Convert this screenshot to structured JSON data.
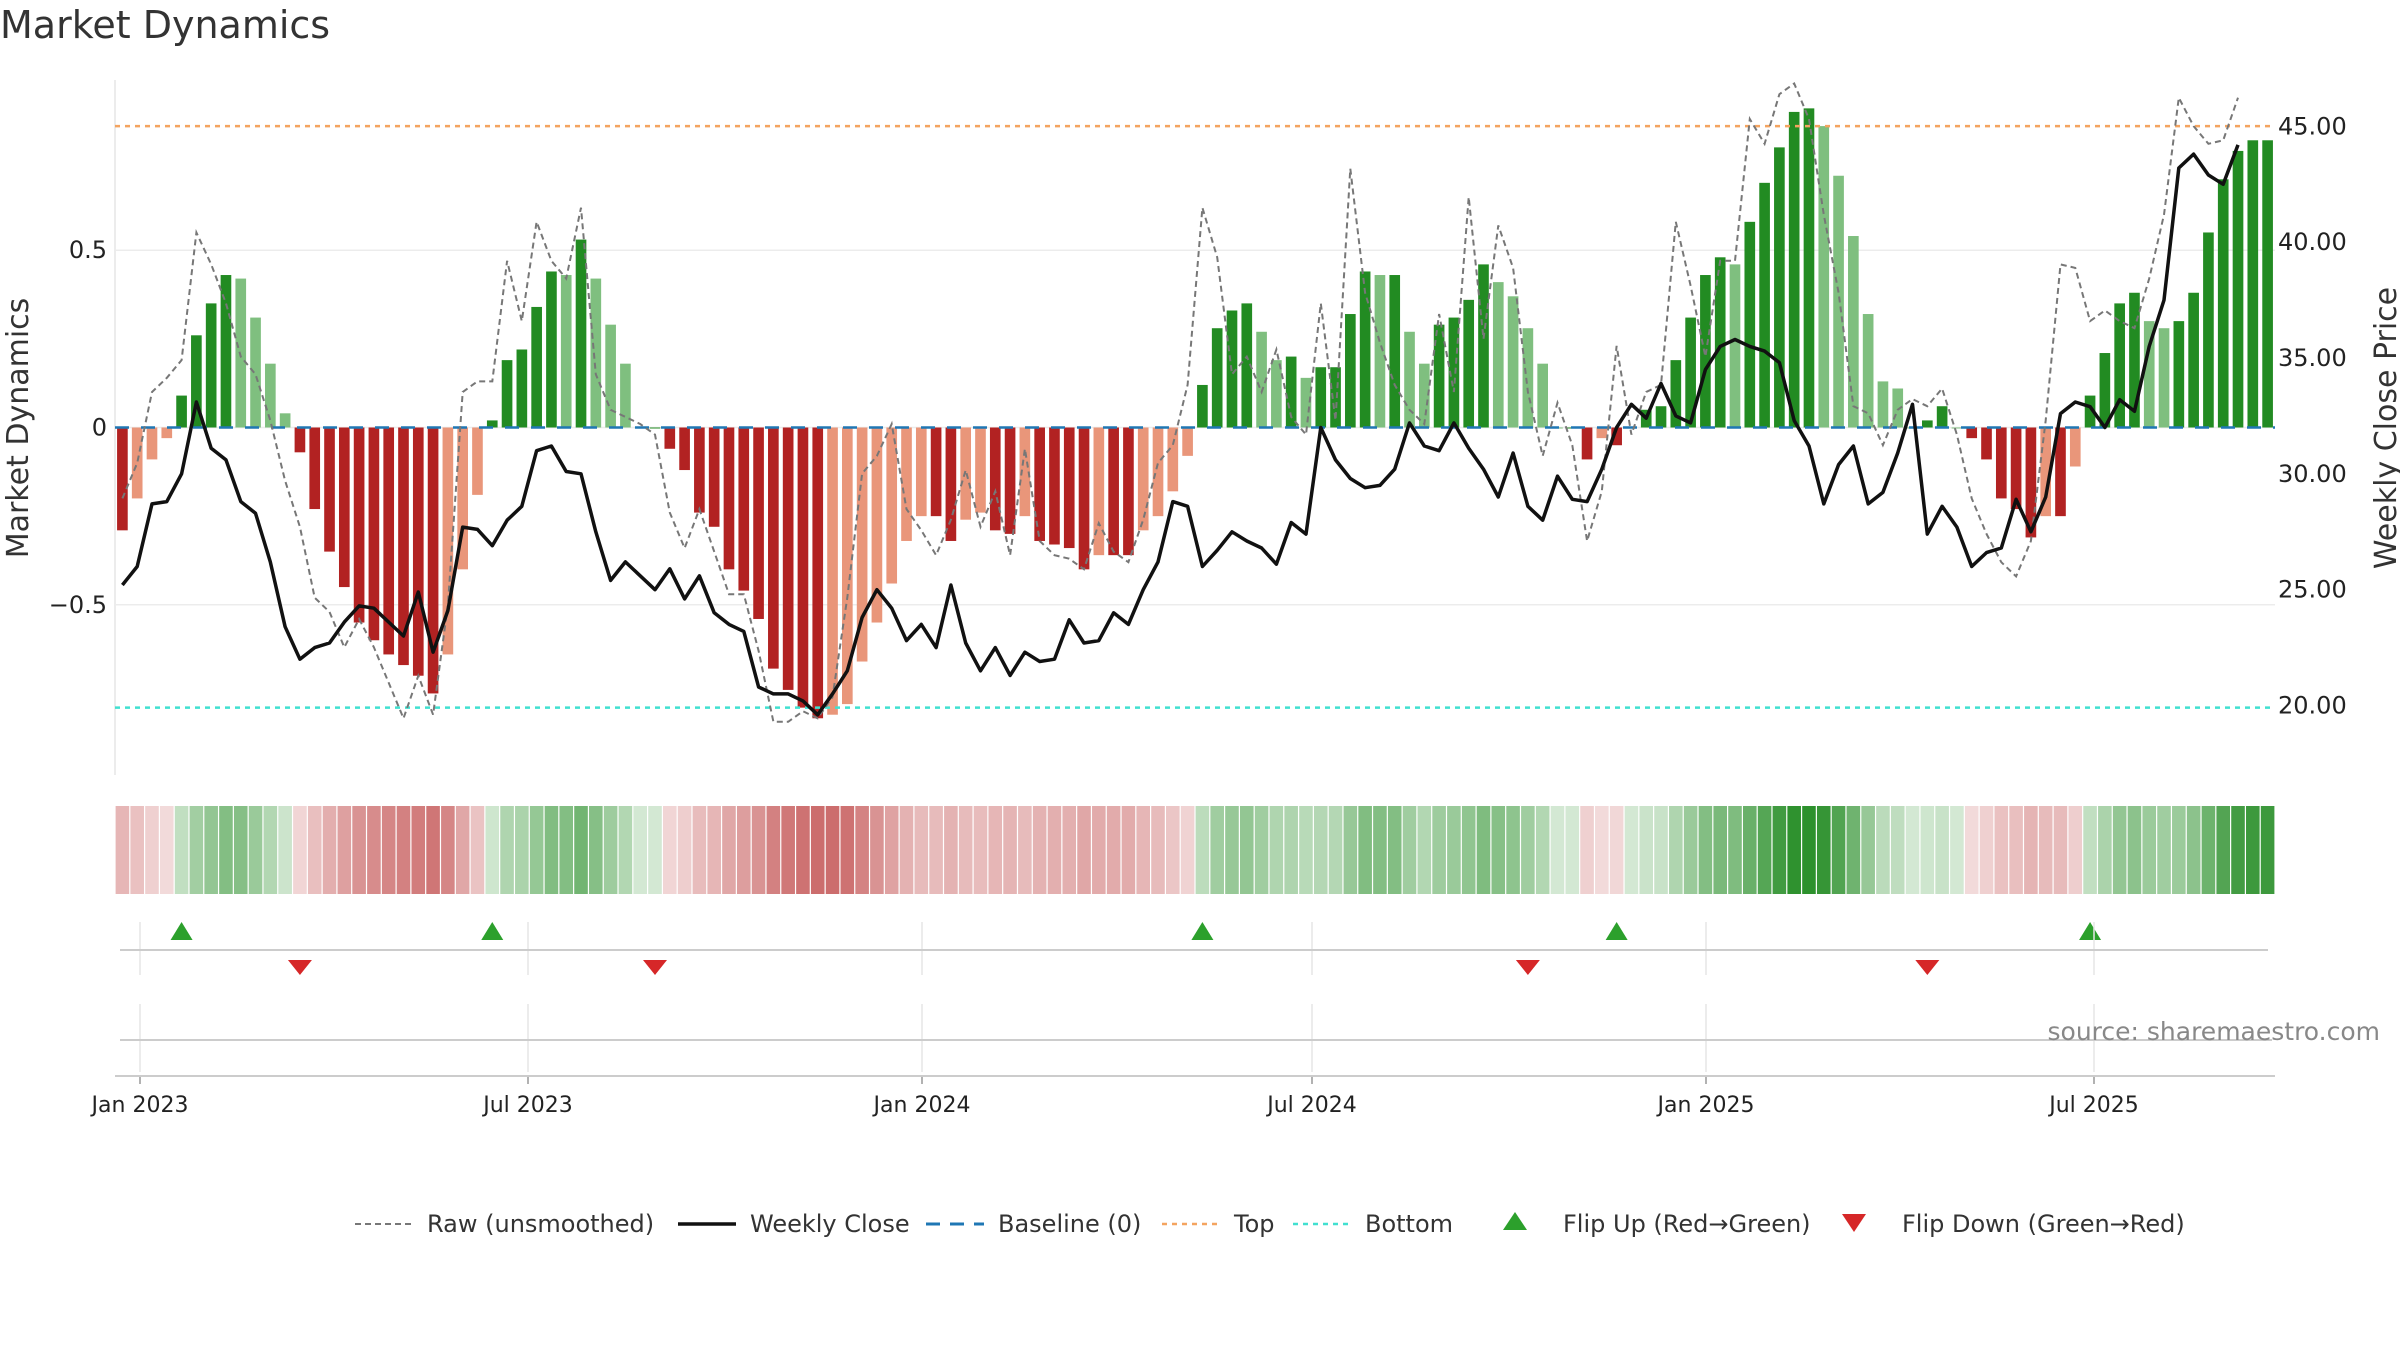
{
  "chart_data": {
    "type": "bar",
    "title": "Market Dynamics",
    "ylabel_left": "Market Dynamics",
    "ylabel_right": "Weekly Close Price",
    "ylim_left": [
      -0.98,
      0.98
    ],
    "ylim_right": [
      17.0,
      47.0
    ],
    "yticks_left": [
      {
        "v": 0.5,
        "label": "0.5"
      },
      {
        "v": 0,
        "label": "0"
      },
      {
        "v": -0.5,
        "label": "−0.5"
      }
    ],
    "yticks_right": [
      {
        "v": 45,
        "label": "45.00"
      },
      {
        "v": 40,
        "label": "40.00"
      },
      {
        "v": 35,
        "label": "35.00"
      },
      {
        "v": 30,
        "label": "30.00"
      },
      {
        "v": 25,
        "label": "25.00"
      },
      {
        "v": 20,
        "label": "20.00"
      }
    ],
    "xticks": [
      "Jan 2023",
      "Jul 2023",
      "Jan 2024",
      "Jul 2024",
      "Jan 2025",
      "Jul 2025"
    ],
    "top_level": 0.85,
    "bottom_level": -0.79,
    "baseline": 0,
    "colors": {
      "strong_green": "#228b22",
      "light_green": "#7fbf7f",
      "strong_red": "#b22222",
      "light_red": "#e9967a",
      "raw": "#777777",
      "close": "#111111",
      "baseline": "#1f77b4",
      "top": "#f4a460",
      "bottom": "#40e0d0",
      "flip_up": "#2ca02c",
      "flip_down": "#d62728"
    },
    "series": [
      {
        "name": "Market Dynamics (smoothed)",
        "values": [
          -0.29,
          -0.2,
          -0.09,
          -0.03,
          0.09,
          0.26,
          0.35,
          0.43,
          0.42,
          0.31,
          0.18,
          0.04,
          -0.07,
          -0.23,
          -0.35,
          -0.45,
          -0.55,
          -0.6,
          -0.64,
          -0.67,
          -0.7,
          -0.75,
          -0.64,
          -0.4,
          -0.19,
          0.02,
          0.19,
          0.22,
          0.34,
          0.44,
          0.43,
          0.53,
          0.42,
          0.29,
          0.18,
          0.0,
          0.0,
          -0.06,
          -0.12,
          -0.24,
          -0.28,
          -0.4,
          -0.46,
          -0.54,
          -0.68,
          -0.74,
          -0.79,
          -0.82,
          -0.81,
          -0.78,
          -0.66,
          -0.55,
          -0.44,
          -0.32,
          -0.25,
          -0.25,
          -0.32,
          -0.26,
          -0.24,
          -0.29,
          -0.3,
          -0.25,
          -0.32,
          -0.33,
          -0.34,
          -0.4,
          -0.36,
          -0.36,
          -0.36,
          -0.29,
          -0.25,
          -0.18,
          -0.08,
          0.12,
          0.28,
          0.33,
          0.35,
          0.27,
          0.19,
          0.2,
          0.14,
          0.17,
          0.17,
          0.32,
          0.44,
          0.43,
          0.43,
          0.27,
          0.18,
          0.29,
          0.31,
          0.36,
          0.46,
          0.41,
          0.37,
          0.28,
          0.18,
          0.0,
          0.0,
          -0.09,
          -0.03,
          -0.05,
          0.0,
          0.05,
          0.06,
          0.19,
          0.31,
          0.43,
          0.48,
          0.46,
          0.58,
          0.69,
          0.79,
          0.89,
          0.9,
          0.85,
          0.71,
          0.54,
          0.32,
          0.13,
          0.11,
          0.0,
          0.02,
          0.06,
          0.0,
          -0.03,
          -0.09,
          -0.2,
          -0.23,
          -0.31,
          -0.25,
          -0.25,
          -0.11,
          0.09,
          0.21,
          0.35,
          0.38,
          0.3,
          0.28,
          0.3,
          0.38,
          0.55,
          0.7,
          0.78,
          0.81,
          0.81
        ]
      },
      {
        "name": "Raw (unsmoothed)",
        "values": [
          -0.2,
          -0.1,
          0.1,
          0.14,
          0.19,
          0.55,
          0.46,
          0.35,
          0.2,
          0.15,
          0.02,
          -0.15,
          -0.28,
          -0.48,
          -0.52,
          -0.62,
          -0.54,
          -0.62,
          -0.72,
          -0.82,
          -0.7,
          -0.81,
          -0.5,
          0.1,
          0.13,
          0.13,
          0.47,
          0.3,
          0.58,
          0.47,
          0.42,
          0.62,
          0.15,
          0.05,
          0.03,
          0.01,
          -0.02,
          -0.24,
          -0.34,
          -0.23,
          -0.35,
          -0.47,
          -0.47,
          -0.63,
          -0.83,
          -0.83,
          -0.8,
          -0.82,
          -0.76,
          -0.48,
          -0.13,
          -0.08,
          0.01,
          -0.23,
          -0.29,
          -0.36,
          -0.26,
          -0.12,
          -0.28,
          -0.18,
          -0.36,
          -0.06,
          -0.32,
          -0.36,
          -0.37,
          -0.4,
          -0.27,
          -0.35,
          -0.38,
          -0.26,
          -0.1,
          -0.05,
          0.12,
          0.62,
          0.48,
          0.15,
          0.2,
          0.1,
          0.22,
          0.03,
          -0.02,
          0.35,
          0.02,
          0.73,
          0.38,
          0.24,
          0.12,
          0.05,
          0.01,
          0.32,
          0.1,
          0.65,
          0.25,
          0.57,
          0.45,
          0.1,
          -0.08,
          0.07,
          -0.05,
          -0.32,
          -0.18,
          0.23,
          -0.02,
          0.1,
          0.12,
          0.58,
          0.4,
          0.2,
          0.47,
          0.47,
          0.87,
          0.8,
          0.94,
          0.97,
          0.87,
          0.6,
          0.38,
          0.06,
          0.04,
          -0.05,
          0.05,
          0.08,
          0.06,
          0.11,
          -0.02,
          -0.2,
          -0.3,
          -0.38,
          -0.42,
          -0.32,
          0.02,
          0.46,
          0.45,
          0.3,
          0.33,
          0.3,
          0.28,
          0.42,
          0.6,
          0.93,
          0.85,
          0.8,
          0.81,
          0.93
        ]
      },
      {
        "name": "Weekly Close",
        "values": [
          25.2,
          26.0,
          28.7,
          28.8,
          30.0,
          33.1,
          31.1,
          30.6,
          28.8,
          28.3,
          26.2,
          23.4,
          22.0,
          22.5,
          22.7,
          23.6,
          24.3,
          24.2,
          23.6,
          23.0,
          24.9,
          22.3,
          24.1,
          27.7,
          27.6,
          26.9,
          28.0,
          28.6,
          31.0,
          31.2,
          30.1,
          30.0,
          27.5,
          25.4,
          26.2,
          25.6,
          25.0,
          25.9,
          24.6,
          25.6,
          24.0,
          23.5,
          23.2,
          20.8,
          20.5,
          20.5,
          20.2,
          19.6,
          20.5,
          21.5,
          23.8,
          25.0,
          24.2,
          22.8,
          23.5,
          22.5,
          25.2,
          22.7,
          21.5,
          22.5,
          21.3,
          22.3,
          21.9,
          22.0,
          23.7,
          22.7,
          22.8,
          24.0,
          23.5,
          25.0,
          26.2,
          28.8,
          28.6,
          26.0,
          26.7,
          27.5,
          27.1,
          26.8,
          26.1,
          27.9,
          27.4,
          32.0,
          30.6,
          29.8,
          29.4,
          29.5,
          30.2,
          32.2,
          31.2,
          31.0,
          32.2,
          31.1,
          30.2,
          29.0,
          30.9,
          28.6,
          28.0,
          29.9,
          28.9,
          28.8,
          30.2,
          32.0,
          33.0,
          32.4,
          33.9,
          32.5,
          32.2,
          34.5,
          35.5,
          35.8,
          35.5,
          35.3,
          34.8,
          32.3,
          31.2,
          28.7,
          30.4,
          31.2,
          28.7,
          29.2,
          30.9,
          33.0,
          27.4,
          28.6,
          27.7,
          26.0,
          26.6,
          26.8,
          28.9,
          27.5,
          29.0,
          32.6,
          33.1,
          32.9,
          32.0,
          33.2,
          32.7,
          35.5,
          37.5,
          43.2,
          43.8,
          42.9,
          42.5,
          44.2
        ]
      }
    ],
    "flips": {
      "up": [
        "Flip Up (Red→Green)",
        4,
        25,
        73,
        101,
        133
      ],
      "down": [
        "Flip Down (Green→Red)",
        12,
        36,
        95,
        122
      ]
    }
  },
  "legend": [
    {
      "label": "Raw (unsmoothed)",
      "key": "raw"
    },
    {
      "label": "Weekly Close",
      "key": "close"
    },
    {
      "label": "Baseline (0)",
      "key": "baseline"
    },
    {
      "label": "Top",
      "key": "top"
    },
    {
      "label": "Bottom",
      "key": "bottom"
    },
    {
      "label": "Flip Up (Red→Green)",
      "key": "flip_up"
    },
    {
      "label": "Flip Down (Green→Red)",
      "key": "flip_down"
    }
  ],
  "source": "source: sharemaestro.com"
}
